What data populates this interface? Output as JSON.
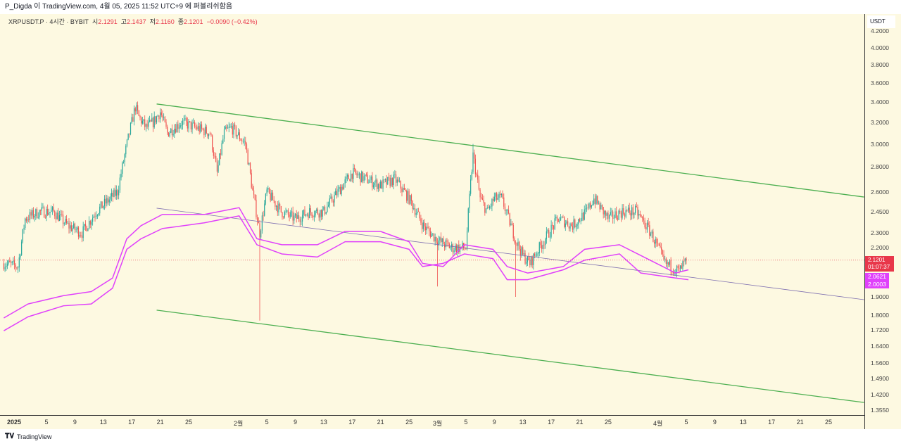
{
  "header": {
    "text": "P_Digda 이 TradingView.com, 4월 05, 2025 11:52 UTC+9 에 퍼블리쉬함음"
  },
  "legend": {
    "symbol": "XRPUSDT.P · 4시간 · BYBIT",
    "o_label": "시",
    "o": "2.1291",
    "h_label": "고",
    "h": "2.1437",
    "l_label": "저",
    "l": "2.1160",
    "c_label": "종",
    "c": "2.1201",
    "change": "−0.0090 (−0.42%)"
  },
  "footer": {
    "brand": "TradingView"
  },
  "colors": {
    "bg": "#fdf9e1",
    "up": "#26a69a",
    "down": "#ef5350",
    "channel": "#4caf50",
    "mid": "#7e6fb0",
    "band": "#e040fb",
    "last": "#e8374a"
  },
  "chart_data": {
    "type": "candlestick",
    "scale": "log",
    "currency": "USDT",
    "ylim": [
      1.355,
      4.3
    ],
    "y_ticks": [
      "4.2000",
      "4.0000",
      "3.8000",
      "3.6000",
      "3.4000",
      "3.2000",
      "3.0000",
      "2.8000",
      "2.6000",
      "2.4500",
      "2.3000",
      "2.2000",
      "1.9000",
      "1.8000",
      "1.7200",
      "1.6400",
      "1.5600",
      "1.4900",
      "1.4200",
      "1.3550"
    ],
    "x_ticks": [
      {
        "day": 0,
        "label": "2025"
      },
      {
        "day": 4,
        "label": "5"
      },
      {
        "day": 8,
        "label": "9"
      },
      {
        "day": 12,
        "label": "13"
      },
      {
        "day": 16,
        "label": "17"
      },
      {
        "day": 20,
        "label": "21"
      },
      {
        "day": 24,
        "label": "25"
      },
      {
        "day": 31,
        "label": "2월"
      },
      {
        "day": 35,
        "label": "5"
      },
      {
        "day": 39,
        "label": "9"
      },
      {
        "day": 43,
        "label": "13"
      },
      {
        "day": 47,
        "label": "17"
      },
      {
        "day": 51,
        "label": "21"
      },
      {
        "day": 55,
        "label": "25"
      },
      {
        "day": 59,
        "label": "3월"
      },
      {
        "day": 63,
        "label": "5"
      },
      {
        "day": 67,
        "label": "9"
      },
      {
        "day": 71,
        "label": "13"
      },
      {
        "day": 75,
        "label": "17"
      },
      {
        "day": 79,
        "label": "21"
      },
      {
        "day": 83,
        "label": "25"
      },
      {
        "day": 90,
        "label": "4월"
      },
      {
        "day": 94,
        "label": "5"
      },
      {
        "day": 98,
        "label": "9"
      },
      {
        "day": 102,
        "label": "13"
      },
      {
        "day": 106,
        "label": "17"
      },
      {
        "day": 110,
        "label": "21"
      },
      {
        "day": 114,
        "label": "25"
      }
    ],
    "close_path": [
      [
        -2,
        2.1
      ],
      [
        0,
        2.08
      ],
      [
        1,
        2.4
      ],
      [
        3,
        2.45
      ],
      [
        5,
        2.45
      ],
      [
        7,
        2.35
      ],
      [
        9,
        2.3
      ],
      [
        11,
        2.45
      ],
      [
        13,
        2.55
      ],
      [
        14,
        2.6
      ],
      [
        15,
        2.9
      ],
      [
        16,
        3.2
      ],
      [
        16.5,
        3.35
      ],
      [
        17,
        3.25
      ],
      [
        18,
        3.15
      ],
      [
        19,
        3.2
      ],
      [
        20,
        3.3
      ],
      [
        21,
        3.1
      ],
      [
        23,
        3.2
      ],
      [
        25,
        3.15
      ],
      [
        27,
        3.1
      ],
      [
        28,
        2.75
      ],
      [
        29,
        3.1
      ],
      [
        30,
        3.15
      ],
      [
        32,
        3.0
      ],
      [
        33,
        2.6
      ],
      [
        34,
        2.3
      ],
      [
        35,
        2.6
      ],
      [
        37,
        2.45
      ],
      [
        39,
        2.4
      ],
      [
        41,
        2.45
      ],
      [
        43,
        2.45
      ],
      [
        45,
        2.6
      ],
      [
        47,
        2.75
      ],
      [
        49,
        2.7
      ],
      [
        51,
        2.65
      ],
      [
        53,
        2.7
      ],
      [
        55,
        2.55
      ],
      [
        57,
        2.35
      ],
      [
        59,
        2.25
      ],
      [
        61,
        2.2
      ],
      [
        63,
        2.2
      ],
      [
        64,
        2.9
      ],
      [
        65,
        2.55
      ],
      [
        66,
        2.45
      ],
      [
        67,
        2.55
      ],
      [
        68,
        2.55
      ],
      [
        69,
        2.4
      ],
      [
        70,
        2.25
      ],
      [
        71,
        2.15
      ],
      [
        72,
        2.1
      ],
      [
        74,
        2.25
      ],
      [
        76,
        2.4
      ],
      [
        78,
        2.35
      ],
      [
        80,
        2.45
      ],
      [
        81,
        2.55
      ],
      [
        83,
        2.4
      ],
      [
        85,
        2.45
      ],
      [
        87,
        2.45
      ],
      [
        89,
        2.3
      ],
      [
        91,
        2.1
      ],
      [
        92,
        2.08
      ],
      [
        93,
        2.05
      ],
      [
        94,
        2.12
      ]
    ],
    "spikes": [
      {
        "day": 34,
        "low": 1.77
      },
      {
        "day": 64,
        "high": 3.0
      },
      {
        "day": 59,
        "low": 1.96
      },
      {
        "day": 70,
        "low": 1.9
      }
    ],
    "channel_upper": [
      [
        19.5,
        3.38
      ],
      [
        119,
        2.56
      ]
    ],
    "channel_lower": [
      [
        19.5,
        1.826
      ],
      [
        119,
        1.386
      ]
    ],
    "channel_mid": [
      [
        19.5,
        2.476
      ],
      [
        119,
        1.884
      ]
    ],
    "band_upper": [
      [
        -2,
        1.784
      ],
      [
        1.4,
        1.86
      ],
      [
        6.4,
        1.907
      ],
      [
        10.3,
        1.93
      ],
      [
        13.3,
        2.01
      ],
      [
        15.3,
        2.26
      ],
      [
        17.3,
        2.35
      ],
      [
        20.3,
        2.43
      ],
      [
        26.2,
        2.43
      ],
      [
        31.1,
        2.48
      ],
      [
        33.6,
        2.26
      ],
      [
        37.1,
        2.22
      ],
      [
        42.1,
        2.22
      ],
      [
        46,
        2.31
      ],
      [
        51,
        2.31
      ],
      [
        55,
        2.24
      ],
      [
        56.9,
        2.1
      ],
      [
        59.8,
        2.08
      ],
      [
        62.8,
        2.22
      ],
      [
        66.8,
        2.19
      ],
      [
        68.8,
        2.08
      ],
      [
        71.7,
        2.04
      ],
      [
        76.7,
        2.08
      ],
      [
        79.7,
        2.19
      ],
      [
        84.6,
        2.22
      ],
      [
        87.6,
        2.15
      ],
      [
        92.5,
        2.04
      ],
      [
        94.3,
        2.06
      ]
    ],
    "band_lower": [
      [
        -2,
        1.717
      ],
      [
        1.4,
        1.79
      ],
      [
        6.4,
        1.85
      ],
      [
        10.3,
        1.86
      ],
      [
        13.3,
        1.95
      ],
      [
        15.3,
        2.19
      ],
      [
        17.3,
        2.26
      ],
      [
        20.3,
        2.33
      ],
      [
        26.2,
        2.37
      ],
      [
        31.1,
        2.42
      ],
      [
        33.6,
        2.22
      ],
      [
        37.1,
        2.16
      ],
      [
        42.1,
        2.14
      ],
      [
        46,
        2.24
      ],
      [
        51,
        2.24
      ],
      [
        55,
        2.19
      ],
      [
        56.9,
        2.08
      ],
      [
        59.8,
        2.1
      ],
      [
        62.8,
        2.16
      ],
      [
        66.8,
        2.13
      ],
      [
        68.8,
        2.0
      ],
      [
        71.7,
        2.0
      ],
      [
        76.7,
        2.06
      ],
      [
        79.7,
        2.12
      ],
      [
        84.6,
        2.16
      ],
      [
        87.6,
        2.04
      ],
      [
        92.5,
        2.01
      ],
      [
        94.3,
        2.0
      ]
    ],
    "last_price": {
      "value": 2.1201,
      "label": "2.1201",
      "countdown": "01:07:37"
    },
    "band_labels": [
      {
        "value": 2.0621,
        "label": "2.0621"
      },
      {
        "value": 2.0003,
        "label": "2.0003"
      }
    ]
  }
}
